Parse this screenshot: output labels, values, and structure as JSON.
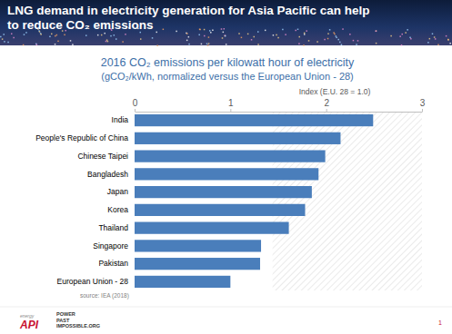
{
  "slide": {
    "title_lines": [
      "LNG demand in electricity generation for Asia Pacific can help",
      "to reduce CO₂ emissions"
    ],
    "source": "source: IEA (2018)",
    "footer": {
      "brand": "energy",
      "logo": "API",
      "tagline": [
        "POWER",
        "PAST",
        "IMPOSSIBLE.ORG"
      ],
      "page_number": "1"
    }
  },
  "chart_data": {
    "type": "bar",
    "orientation": "horizontal",
    "title": "2016 CO₂ emissions per kilowatt hour of electricity",
    "subtitle": "(gCO₂/kWh, normalized versus the European Union - 28)",
    "xlabel": "Index (E.U. 28 = 1.0)",
    "categories": [
      "India",
      "People's Republic of China",
      "Chinese Taipei",
      "Bangladesh",
      "Japan",
      "Korea",
      "Thailand",
      "Singapore",
      "Pakistan",
      "European Union - 28"
    ],
    "values": [
      2.49,
      2.15,
      1.99,
      1.92,
      1.85,
      1.78,
      1.61,
      1.32,
      1.31,
      1.0
    ],
    "color": "#4a7ebb",
    "xlim": [
      0,
      3
    ],
    "xticks": [
      0,
      1,
      2,
      3
    ],
    "grid": false
  }
}
